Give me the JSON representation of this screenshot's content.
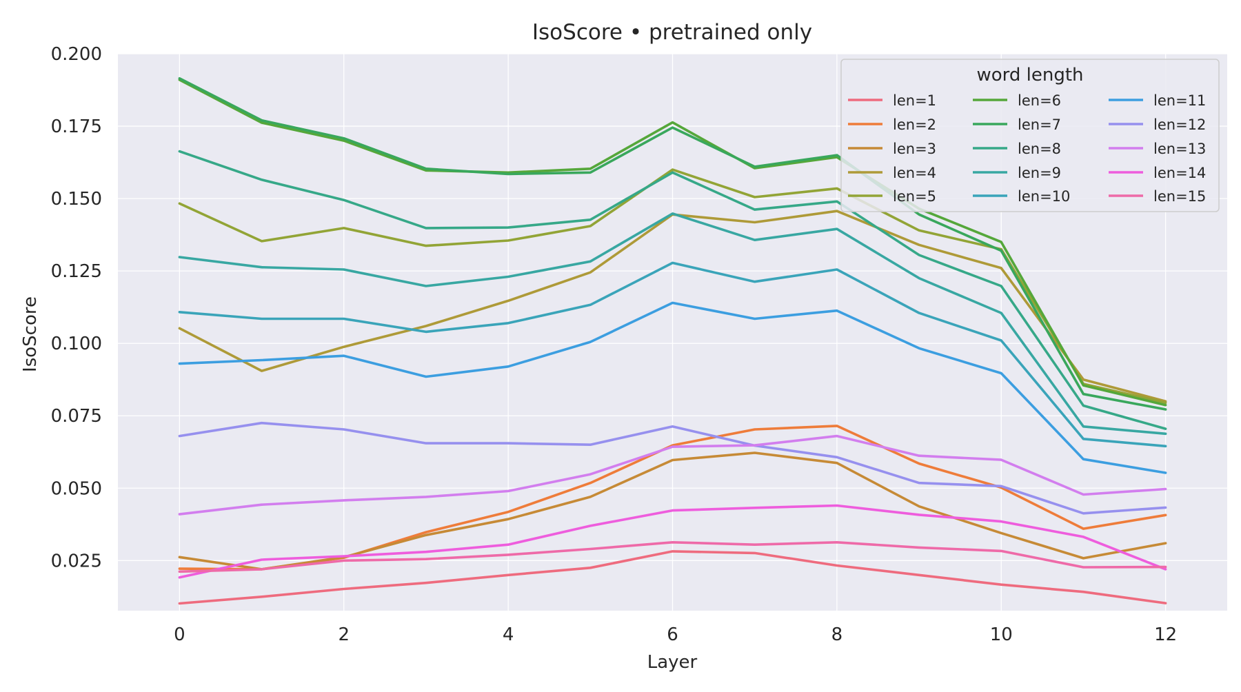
{
  "chart_data": {
    "type": "line",
    "title": "IsoScore • pretrained only",
    "xlabel": "Layer",
    "ylabel": "IsoScore",
    "xlim": [
      -0.75,
      12.75
    ],
    "ylim": [
      0.0077,
      0.2
    ],
    "x_ticks": [
      "0",
      "2",
      "4",
      "6",
      "8",
      "10",
      "12"
    ],
    "y_ticks": [
      "0.025",
      "0.050",
      "0.075",
      "0.100",
      "0.125",
      "0.150",
      "0.175",
      "0.200"
    ],
    "grid": true,
    "legend": {
      "title": "word length",
      "placement": "top-right",
      "columns": 3
    },
    "x": [
      0,
      1,
      2,
      3,
      4,
      5,
      6,
      7,
      8,
      9,
      10,
      11,
      12
    ],
    "series": [
      {
        "name": "len=1",
        "color": "#ee6b7e",
        "values": [
          0.0102,
          0.0125,
          0.0152,
          0.0173,
          0.02,
          0.0225,
          0.0282,
          0.0276,
          0.0233,
          0.02,
          0.0167,
          0.0142,
          0.0103
        ]
      },
      {
        "name": "len=2",
        "color": "#ee7c3a",
        "values": [
          0.0222,
          0.022,
          0.026,
          0.0348,
          0.0418,
          0.0518,
          0.0648,
          0.0703,
          0.0715,
          0.0585,
          0.0502,
          0.036,
          0.0407
        ]
      },
      {
        "name": "len=3",
        "color": "#c68a36",
        "values": [
          0.0262,
          0.022,
          0.0262,
          0.0338,
          0.0393,
          0.047,
          0.0597,
          0.0622,
          0.0587,
          0.0437,
          0.0345,
          0.0258,
          0.031
        ]
      },
      {
        "name": "len=4",
        "color": "#ae9a38",
        "values": [
          0.1052,
          0.0905,
          0.0988,
          0.106,
          0.1147,
          0.1245,
          0.1445,
          0.1418,
          0.1457,
          0.134,
          0.126,
          0.0875,
          0.08
        ]
      },
      {
        "name": "len=5",
        "color": "#92a436",
        "values": [
          0.1483,
          0.1353,
          0.1398,
          0.1337,
          0.1355,
          0.1405,
          0.16,
          0.1505,
          0.1535,
          0.139,
          0.1325,
          0.086,
          0.0795
        ]
      },
      {
        "name": "len=6",
        "color": "#55a73a",
        "values": [
          0.191,
          0.1762,
          0.17,
          0.1597,
          0.159,
          0.1603,
          0.1763,
          0.1605,
          0.1643,
          0.1465,
          0.135,
          0.0855,
          0.0787
        ]
      },
      {
        "name": "len=7",
        "color": "#39a75c",
        "values": [
          0.1915,
          0.177,
          0.1708,
          0.1603,
          0.1585,
          0.159,
          0.1745,
          0.161,
          0.165,
          0.1445,
          0.132,
          0.0825,
          0.0772
        ]
      },
      {
        "name": "len=8",
        "color": "#36a888",
        "values": [
          0.1663,
          0.1565,
          0.1495,
          0.1398,
          0.14,
          0.1427,
          0.159,
          0.1462,
          0.149,
          0.1305,
          0.1198,
          0.0785,
          0.0705
        ]
      },
      {
        "name": "len=9",
        "color": "#38a7a2",
        "values": [
          0.1298,
          0.1263,
          0.1255,
          0.1198,
          0.123,
          0.1283,
          0.1448,
          0.1357,
          0.1395,
          0.1225,
          0.1105,
          0.0713,
          0.0688
        ]
      },
      {
        "name": "len=10",
        "color": "#3aa4b9",
        "values": [
          0.1108,
          0.1085,
          0.1085,
          0.104,
          0.107,
          0.1133,
          0.1278,
          0.1213,
          0.1255,
          0.1105,
          0.101,
          0.067,
          0.0645
        ]
      },
      {
        "name": "len=11",
        "color": "#3c9ee0",
        "values": [
          0.093,
          0.0942,
          0.0957,
          0.0885,
          0.092,
          0.1005,
          0.114,
          0.1085,
          0.1113,
          0.0983,
          0.0897,
          0.06,
          0.0553
        ]
      },
      {
        "name": "len=12",
        "color": "#9690ee",
        "values": [
          0.068,
          0.0725,
          0.0703,
          0.0655,
          0.0655,
          0.065,
          0.0713,
          0.0647,
          0.0607,
          0.0518,
          0.0507,
          0.0413,
          0.0433
        ]
      },
      {
        "name": "len=13",
        "color": "#d27eee",
        "values": [
          0.041,
          0.0443,
          0.0458,
          0.047,
          0.049,
          0.0548,
          0.0643,
          0.0648,
          0.068,
          0.0612,
          0.0598,
          0.0478,
          0.0497
        ]
      },
      {
        "name": "len=14",
        "color": "#ee5ddd",
        "values": [
          0.0192,
          0.0253,
          0.0265,
          0.028,
          0.0305,
          0.037,
          0.0423,
          0.0432,
          0.044,
          0.0408,
          0.0385,
          0.0332,
          0.022
        ]
      },
      {
        "name": "len=15",
        "color": "#ee6aa8",
        "values": [
          0.0212,
          0.022,
          0.025,
          0.0255,
          0.027,
          0.029,
          0.0313,
          0.0305,
          0.0313,
          0.0295,
          0.0283,
          0.0227,
          0.0228
        ]
      }
    ]
  }
}
